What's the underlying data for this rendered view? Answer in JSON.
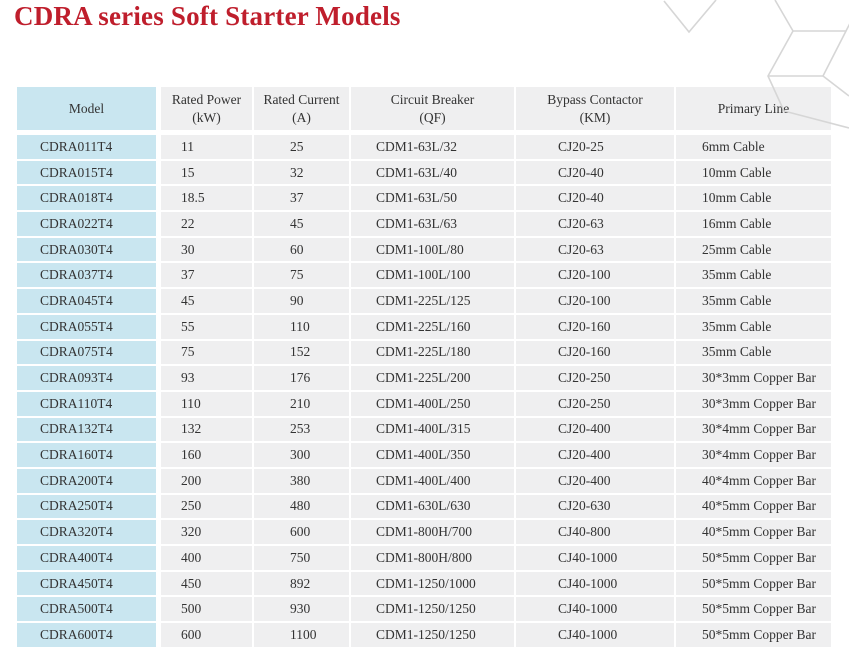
{
  "page": {
    "title": "CDRA series Soft Starter Models",
    "title_color": "#bf1e2c"
  },
  "decor": {
    "hexagon_stroke": "#d6d6d6"
  },
  "table": {
    "colors": {
      "model_column_bg": "#c9e6f0",
      "cell_bg": "#efeff0",
      "text": "#333333",
      "gap": "#ffffff"
    },
    "columns": [
      {
        "key": "model",
        "label": "Model",
        "sub": ""
      },
      {
        "key": "power",
        "label": "Rated Power",
        "sub": "(kW)"
      },
      {
        "key": "current",
        "label": "Rated Current",
        "sub": "(A)"
      },
      {
        "key": "breaker",
        "label": "Circuit Breaker",
        "sub": "(QF)"
      },
      {
        "key": "contactor",
        "label": "Bypass Contactor",
        "sub": "(KM)"
      },
      {
        "key": "line",
        "label": "Primary Line",
        "sub": ""
      }
    ],
    "rows": [
      {
        "model": "CDRA011T4",
        "power": "11",
        "current": "25",
        "breaker": "CDM1-63L/32",
        "contactor": "CJ20-25",
        "line": "6mm Cable"
      },
      {
        "model": "CDRA015T4",
        "power": "15",
        "current": "32",
        "breaker": "CDM1-63L/40",
        "contactor": "CJ20-40",
        "line": "10mm Cable"
      },
      {
        "model": "CDRA018T4",
        "power": "18.5",
        "current": "37",
        "breaker": "CDM1-63L/50",
        "contactor": "CJ20-40",
        "line": "10mm Cable"
      },
      {
        "model": "CDRA022T4",
        "power": "22",
        "current": "45",
        "breaker": "CDM1-63L/63",
        "contactor": "CJ20-63",
        "line": "16mm Cable"
      },
      {
        "model": "CDRA030T4",
        "power": "30",
        "current": "60",
        "breaker": "CDM1-100L/80",
        "contactor": "CJ20-63",
        "line": "25mm Cable"
      },
      {
        "model": "CDRA037T4",
        "power": "37",
        "current": "75",
        "breaker": "CDM1-100L/100",
        "contactor": "CJ20-100",
        "line": "35mm Cable"
      },
      {
        "model": "CDRA045T4",
        "power": "45",
        "current": "90",
        "breaker": "CDM1-225L/125",
        "contactor": "CJ20-100",
        "line": "35mm Cable"
      },
      {
        "model": "CDRA055T4",
        "power": "55",
        "current": "110",
        "breaker": "CDM1-225L/160",
        "contactor": "CJ20-160",
        "line": "35mm Cable"
      },
      {
        "model": "CDRA075T4",
        "power": "75",
        "current": "152",
        "breaker": "CDM1-225L/180",
        "contactor": "CJ20-160",
        "line": "35mm Cable"
      },
      {
        "model": "CDRA093T4",
        "power": "93",
        "current": "176",
        "breaker": "CDM1-225L/200",
        "contactor": "CJ20-250",
        "line": "30*3mm Copper Bar"
      },
      {
        "model": "CDRA110T4",
        "power": "110",
        "current": "210",
        "breaker": "CDM1-400L/250",
        "contactor": "CJ20-250",
        "line": "30*3mm Copper Bar"
      },
      {
        "model": "CDRA132T4",
        "power": "132",
        "current": "253",
        "breaker": "CDM1-400L/315",
        "contactor": "CJ20-400",
        "line": "30*4mm Copper Bar"
      },
      {
        "model": "CDRA160T4",
        "power": "160",
        "current": "300",
        "breaker": "CDM1-400L/350",
        "contactor": "CJ20-400",
        "line": "30*4mm Copper Bar"
      },
      {
        "model": "CDRA200T4",
        "power": "200",
        "current": "380",
        "breaker": "CDM1-400L/400",
        "contactor": "CJ20-400",
        "line": "40*4mm Copper Bar"
      },
      {
        "model": "CDRA250T4",
        "power": "250",
        "current": "480",
        "breaker": "CDM1-630L/630",
        "contactor": "CJ20-630",
        "line": "40*5mm Copper Bar"
      },
      {
        "model": "CDRA320T4",
        "power": "320",
        "current": "600",
        "breaker": "CDM1-800H/700",
        "contactor": "CJ40-800",
        "line": "40*5mm Copper Bar"
      },
      {
        "model": "CDRA400T4",
        "power": "400",
        "current": "750",
        "breaker": "CDM1-800H/800",
        "contactor": "CJ40-1000",
        "line": "50*5mm Copper Bar"
      },
      {
        "model": "CDRA450T4",
        "power": "450",
        "current": "892",
        "breaker": "CDM1-1250/1000",
        "contactor": "CJ40-1000",
        "line": "50*5mm Copper Bar"
      },
      {
        "model": "CDRA500T4",
        "power": "500",
        "current": "930",
        "breaker": "CDM1-1250/1250",
        "contactor": "CJ40-1000",
        "line": "50*5mm Copper Bar"
      },
      {
        "model": "CDRA600T4",
        "power": "600",
        "current": "1100",
        "breaker": "CDM1-1250/1250",
        "contactor": "CJ40-1000",
        "line": "50*5mm Copper Bar"
      }
    ]
  }
}
